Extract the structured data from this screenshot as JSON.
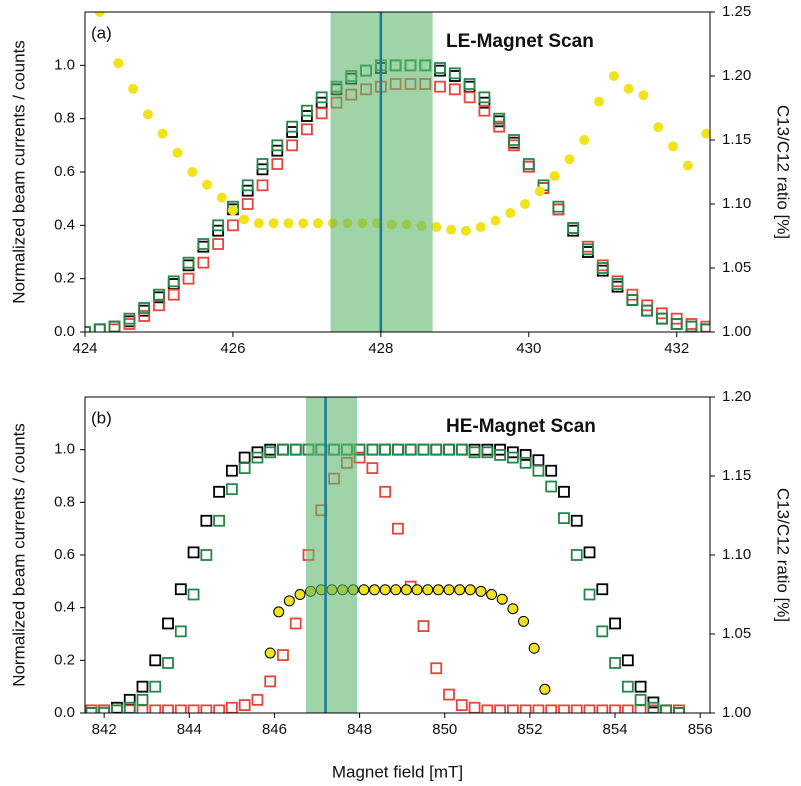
{
  "chart_data": [
    {
      "type": "scatter",
      "label": "(a)",
      "title": "LE-Magnet Scan",
      "y_label": "Normalized beam currents / counts",
      "y2_label": "C13/C12 ratio [%]",
      "xlim": [
        424,
        432.45
      ],
      "xticks": [
        424,
        426,
        428,
        430,
        432
      ],
      "ylim": [
        0,
        1.2
      ],
      "yticks": [
        {
          "value": 0,
          "label": "0.0"
        },
        {
          "value": 0.2,
          "label": "0.2"
        },
        {
          "value": 0.4,
          "label": "0.4"
        },
        {
          "value": 0.6,
          "label": "0.6"
        },
        {
          "value": 0.8,
          "label": "0.8"
        },
        {
          "value": 1,
          "label": "1.0"
        }
      ],
      "y2lim": [
        1.0,
        1.25
      ],
      "y2ticks": [
        {
          "value": 1,
          "label": "1.00"
        },
        1.05,
        {
          "value": 1.1,
          "label": "1.10"
        },
        1.15,
        {
          "value": 1.2,
          "label": "1.20"
        },
        1.25
      ],
      "span": [
        427.32,
        428.7
      ],
      "span_color": "#5db86c",
      "vline": 428,
      "vline_color": "#1b7a9a",
      "series": [
        {
          "marker": "square",
          "color": "#000000",
          "x": [
            424.0,
            424.2,
            424.4,
            424.6,
            424.8,
            425.0,
            425.2,
            425.4,
            425.6,
            425.8,
            426.0,
            426.2,
            426.4,
            426.6,
            426.8,
            427.0,
            427.2,
            427.4,
            427.6,
            427.8,
            428.0,
            428.2,
            428.4,
            428.6,
            428.8,
            429.0,
            429.2,
            429.4,
            429.6,
            429.8,
            430.0,
            430.2,
            430.4,
            430.6,
            430.8,
            431.0,
            431.2,
            431.4,
            431.6,
            431.8,
            432.0,
            432.2,
            432.4
          ],
          "values": [
            0,
            0.01,
            0.02,
            0.04,
            0.08,
            0.13,
            0.18,
            0.25,
            0.32,
            0.38,
            0.46,
            0.53,
            0.61,
            0.68,
            0.75,
            0.81,
            0.86,
            0.91,
            0.95,
            0.98,
            0.99,
            1,
            1,
            1,
            0.98,
            0.96,
            0.92,
            0.86,
            0.79,
            0.71,
            0.62,
            0.54,
            0.46,
            0.38,
            0.3,
            0.23,
            0.17,
            0.12,
            0.08,
            0.05,
            0.03,
            0.02,
            0.01
          ]
        },
        {
          "marker": "square",
          "color": "#e8443a",
          "x": [
            424.0,
            424.2,
            424.4,
            424.6,
            424.8,
            425.0,
            425.2,
            425.4,
            425.6,
            425.8,
            426.0,
            426.2,
            426.4,
            426.6,
            426.8,
            427.0,
            427.2,
            427.4,
            427.6,
            427.8,
            428.0,
            428.2,
            428.4,
            428.6,
            428.8,
            429.0,
            429.2,
            429.4,
            429.6,
            429.8,
            430.0,
            430.2,
            430.4,
            430.6,
            430.8,
            431.0,
            431.2,
            431.4,
            431.6,
            431.8,
            432.0,
            432.2,
            432.4
          ],
          "values": [
            0,
            0.01,
            0.01,
            0.03,
            0.06,
            0.1,
            0.14,
            0.2,
            0.26,
            0.33,
            0.4,
            0.48,
            0.55,
            0.63,
            0.7,
            0.76,
            0.82,
            0.86,
            0.89,
            0.91,
            0.92,
            0.93,
            0.93,
            0.93,
            0.92,
            0.91,
            0.88,
            0.83,
            0.77,
            0.7,
            0.62,
            0.54,
            0.46,
            0.39,
            0.32,
            0.25,
            0.19,
            0.14,
            0.1,
            0.07,
            0.05,
            0.03,
            0.02
          ]
        },
        {
          "marker": "square",
          "color": "#23874a",
          "x": [
            424.0,
            424.2,
            424.4,
            424.6,
            424.8,
            425.0,
            425.2,
            425.4,
            425.6,
            425.8,
            426.0,
            426.2,
            426.4,
            426.6,
            426.8,
            427.0,
            427.2,
            427.4,
            427.6,
            427.8,
            428.0,
            428.2,
            428.4,
            428.6,
            428.8,
            429.0,
            429.2,
            429.4,
            429.6,
            429.8,
            430.0,
            430.2,
            430.4,
            430.6,
            430.8,
            431.0,
            431.2,
            431.4,
            431.6,
            431.8,
            432.0,
            432.2,
            432.4
          ],
          "values": [
            0,
            0.01,
            0.02,
            0.05,
            0.09,
            0.14,
            0.19,
            0.26,
            0.33,
            0.4,
            0.47,
            0.55,
            0.63,
            0.7,
            0.77,
            0.83,
            0.88,
            0.92,
            0.96,
            0.98,
            1,
            1,
            1,
            1,
            0.99,
            0.97,
            0.93,
            0.88,
            0.8,
            0.72,
            0.63,
            0.55,
            0.47,
            0.39,
            0.31,
            0.24,
            0.18,
            0.12,
            0.08,
            0.05,
            0.03,
            0.02,
            0.01
          ]
        },
        {
          "marker": "circle",
          "color": "#f0e31c",
          "axis": "y2",
          "x": [
            424.2,
            424.45,
            424.65,
            424.85,
            425.05,
            425.25,
            425.45,
            425.65,
            425.85,
            426.0,
            426.15,
            426.35,
            426.55,
            426.75,
            426.95,
            427.15,
            427.35,
            427.55,
            427.75,
            427.95,
            428.15,
            428.35,
            428.55,
            428.75,
            428.95,
            429.15,
            429.35,
            429.55,
            429.75,
            429.95,
            430.15,
            430.35,
            430.55,
            430.75,
            430.95,
            431.15,
            431.35,
            431.55,
            431.75,
            431.95,
            432.15,
            432.4
          ],
          "values": [
            1.25,
            1.21,
            1.19,
            1.17,
            1.155,
            1.14,
            1.125,
            1.115,
            1.105,
            1.095,
            1.088,
            1.085,
            1.085,
            1.085,
            1.085,
            1.085,
            1.085,
            1.085,
            1.085,
            1.085,
            1.084,
            1.084,
            1.083,
            1.082,
            1.08,
            1.079,
            1.082,
            1.087,
            1.093,
            1.1,
            1.11,
            1.122,
            1.135,
            1.15,
            1.18,
            1.2,
            1.19,
            1.185,
            1.16,
            1.145,
            1.13,
            1.155
          ]
        }
      ]
    },
    {
      "type": "scatter",
      "label": "(b)",
      "title": "HE-Magnet Scan",
      "y_label": "Normalized beam currents / counts",
      "y2_label": "C13/C12 ratio [%]",
      "x_label": "Magnet field [mT]",
      "xlim": [
        841.55,
        856.23
      ],
      "xticks": [
        842,
        844,
        846,
        848,
        850,
        852,
        854,
        856
      ],
      "ylim": [
        0,
        1.2
      ],
      "yticks": [
        {
          "value": 0,
          "label": "0.0"
        },
        {
          "value": 0.2,
          "label": "0.2"
        },
        {
          "value": 0.4,
          "label": "0.4"
        },
        {
          "value": 0.6,
          "label": "0.6"
        },
        {
          "value": 0.8,
          "label": "0.8"
        },
        {
          "value": 1,
          "label": "1.0"
        }
      ],
      "y2lim": [
        1.0,
        1.2
      ],
      "y2ticks": [
        {
          "value": 1,
          "label": "1.00"
        },
        1.05,
        {
          "value": 1.1,
          "label": "1.10"
        },
        1.15,
        {
          "value": 1.2,
          "label": "1.20"
        }
      ],
      "span": [
        846.74,
        847.94
      ],
      "span_color": "#5db86c",
      "vline": 847.2,
      "vline_color": "#1b7a9a",
      "series": [
        {
          "marker": "square",
          "color": "#000000",
          "x": [
            841.7,
            842.0,
            842.3,
            842.6,
            842.9,
            843.2,
            843.5,
            843.8,
            844.1,
            844.4,
            844.7,
            845.0,
            845.3,
            845.6,
            845.9,
            846.2,
            846.5,
            846.8,
            847.1,
            847.4,
            847.7,
            848.0,
            848.3,
            848.6,
            848.9,
            849.2,
            849.5,
            849.8,
            850.1,
            850.4,
            850.7,
            851.0,
            851.3,
            851.6,
            851.9,
            852.2,
            852.5,
            852.8,
            853.1,
            853.4,
            853.7,
            854.0,
            854.3,
            854.6,
            854.9,
            855.2,
            855.5
          ],
          "values": [
            0,
            0.01,
            0.02,
            0.05,
            0.1,
            0.2,
            0.34,
            0.47,
            0.61,
            0.73,
            0.84,
            0.92,
            0.97,
            0.99,
            1,
            1,
            1,
            1,
            1,
            1,
            1,
            1,
            1,
            1,
            1,
            1,
            1,
            1,
            1,
            1,
            1,
            1,
            1,
            0.99,
            0.98,
            0.96,
            0.92,
            0.84,
            0.73,
            0.61,
            0.47,
            0.34,
            0.2,
            0.1,
            0.04,
            0.01,
            0
          ]
        },
        {
          "marker": "square",
          "color": "#e8443a",
          "x": [
            841.7,
            842.0,
            842.3,
            842.6,
            842.9,
            843.2,
            843.5,
            843.8,
            844.1,
            844.4,
            844.7,
            845.0,
            845.3,
            845.6,
            845.9,
            846.2,
            846.5,
            846.8,
            847.1,
            847.4,
            847.7,
            848.0,
            848.3,
            848.6,
            848.9,
            849.2,
            849.5,
            849.8,
            850.1,
            850.4,
            850.7,
            851.0,
            851.3,
            851.6,
            851.9,
            852.2,
            852.5,
            852.8,
            853.1,
            853.4,
            853.7,
            854.0,
            854.3,
            854.6,
            854.9,
            855.2,
            855.5
          ],
          "values": [
            0.01,
            0.01,
            0.01,
            0.01,
            0.01,
            0.01,
            0.01,
            0.01,
            0.01,
            0.01,
            0.01,
            0.02,
            0.03,
            0.05,
            0.12,
            0.22,
            0.34,
            0.6,
            0.77,
            0.89,
            0.95,
            0.97,
            0.93,
            0.84,
            0.7,
            0.48,
            0.33,
            0.17,
            0.07,
            0.03,
            0.02,
            0.01,
            0.01,
            0.01,
            0.01,
            0.01,
            0.01,
            0.01,
            0.01,
            0.01,
            0.01,
            0.01,
            0.01,
            0.01,
            0.01,
            0.01,
            0.01
          ]
        },
        {
          "marker": "square",
          "color": "#23874a",
          "x": [
            841.7,
            842.0,
            842.3,
            842.6,
            842.9,
            843.2,
            843.5,
            843.8,
            844.1,
            844.4,
            844.7,
            845.0,
            845.3,
            845.6,
            845.9,
            846.2,
            846.5,
            846.8,
            847.1,
            847.4,
            847.7,
            848.0,
            848.3,
            848.6,
            848.9,
            849.2,
            849.5,
            849.8,
            850.1,
            850.4,
            850.7,
            851.0,
            851.3,
            851.6,
            851.9,
            852.2,
            852.5,
            852.8,
            853.1,
            853.4,
            853.7,
            854.0,
            854.3,
            854.6,
            854.9,
            855.2,
            855.5
          ],
          "values": [
            0,
            0,
            0.01,
            0.02,
            0.05,
            0.1,
            0.19,
            0.31,
            0.45,
            0.6,
            0.73,
            0.85,
            0.93,
            0.97,
            0.99,
            1,
            1,
            1,
            1,
            1,
            1,
            1,
            1,
            1,
            1,
            1,
            1,
            1,
            1,
            1,
            0.99,
            0.99,
            0.98,
            0.97,
            0.95,
            0.92,
            0.86,
            0.74,
            0.6,
            0.45,
            0.31,
            0.19,
            0.1,
            0.05,
            0.02,
            0.01,
            0
          ]
        },
        {
          "marker": "circle",
          "color": "#f3e21f",
          "edgecolor": "#000000",
          "axis": "y2",
          "x": [
            845.9,
            846.1,
            846.35,
            846.6,
            846.85,
            847.1,
            847.35,
            847.6,
            847.85,
            848.1,
            848.35,
            848.6,
            848.85,
            849.1,
            849.35,
            849.6,
            849.85,
            850.1,
            850.35,
            850.6,
            850.85,
            851.1,
            851.35,
            851.6,
            851.85,
            852.1,
            852.35
          ],
          "values": [
            1.038,
            1.064,
            1.071,
            1.075,
            1.077,
            1.078,
            1.078,
            1.078,
            1.078,
            1.078,
            1.078,
            1.078,
            1.078,
            1.078,
            1.078,
            1.078,
            1.078,
            1.078,
            1.078,
            1.078,
            1.077,
            1.075,
            1.072,
            1.066,
            1.058,
            1.041,
            1.015
          ]
        }
      ]
    }
  ]
}
